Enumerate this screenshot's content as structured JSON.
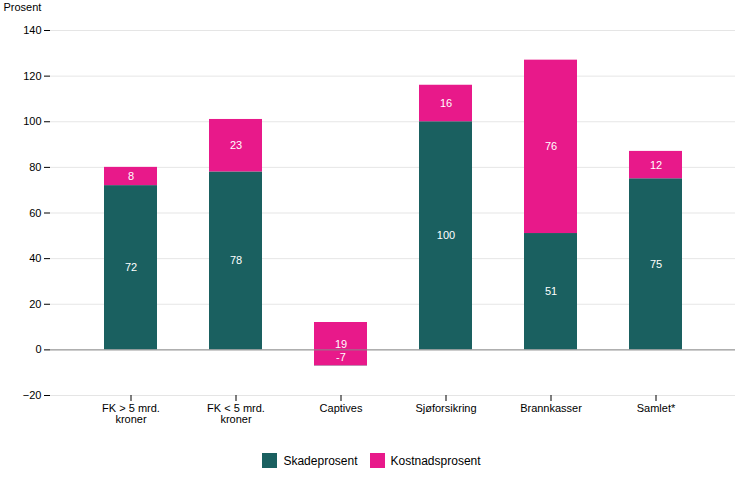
{
  "chart_data": {
    "type": "bar",
    "stacked": true,
    "categories": [
      "FK > 5 mrd.\nkroner",
      "FK < 5 mrd.\nkroner",
      "Captives",
      "Sjøforsikring",
      "Brannkasser",
      "Samlet*"
    ],
    "series": [
      {
        "name": "Skadeprosent",
        "color": "#1a6060",
        "values": [
          72,
          78,
          -7,
          100,
          51,
          75
        ]
      },
      {
        "name": "Kostnadsprosent",
        "color": "#e8198a",
        "values": [
          8,
          23,
          19,
          16,
          76,
          12
        ]
      }
    ],
    "ylabel": "Prosent",
    "ylim": [
      -20,
      140
    ],
    "yticks": [
      -20,
      0,
      20,
      40,
      60,
      80,
      100,
      120,
      140
    ],
    "grid": true,
    "data_labels": true,
    "legend": "bottom"
  }
}
